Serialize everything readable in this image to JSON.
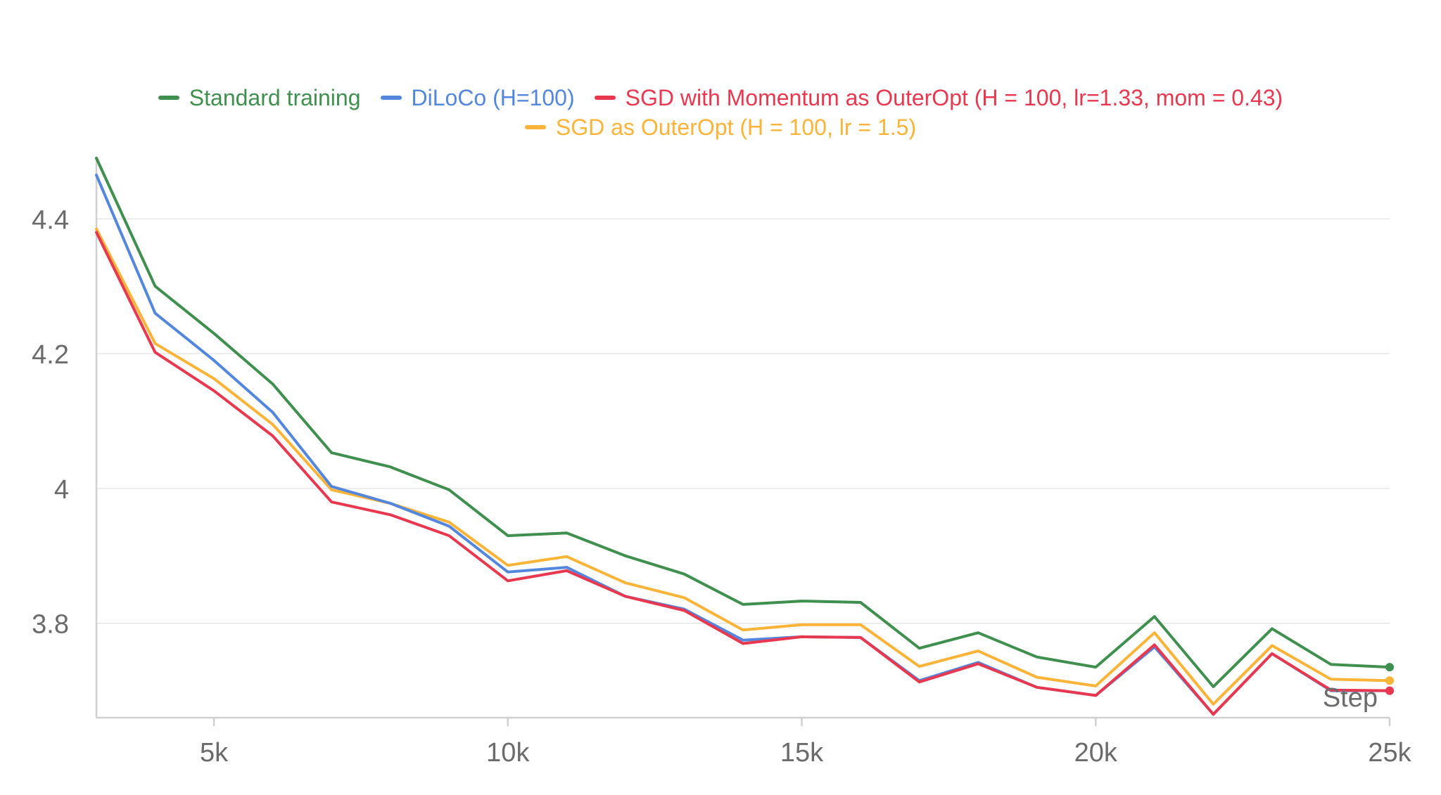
{
  "chart_data": {
    "type": "line",
    "title": "",
    "xlabel": "Step",
    "ylabel": "",
    "xlim": [
      3000,
      25000
    ],
    "ylim": [
      3.66,
      4.49
    ],
    "x_ticks": [
      5000,
      10000,
      15000,
      20000,
      25000
    ],
    "x_tick_labels": [
      "5k",
      "10k",
      "15k",
      "20k",
      "25k"
    ],
    "y_ticks": [
      3.8,
      4.0,
      4.2,
      4.4
    ],
    "y_tick_labels": [
      "3.8",
      "4",
      "4.2",
      "4.4"
    ],
    "grid": "horizontal",
    "legend_position": "top-center",
    "x": [
      3000,
      4000,
      5000,
      6000,
      7000,
      8000,
      9000,
      10000,
      11000,
      12000,
      13000,
      14000,
      15000,
      16000,
      17000,
      18000,
      19000,
      20000,
      21000,
      22000,
      23000,
      24000,
      25000
    ],
    "series": [
      {
        "name": "Standard training",
        "color": "#3f8f4f",
        "values": [
          4.49,
          4.3,
          4.23,
          4.155,
          4.053,
          4.032,
          3.998,
          3.93,
          3.934,
          3.9,
          3.873,
          3.828,
          3.833,
          3.831,
          3.763,
          3.786,
          3.75,
          3.735,
          3.81,
          3.706,
          3.792,
          3.739,
          3.735
        ]
      },
      {
        "name": "DiLoCo (H=100)",
        "color": "#5387dd",
        "values": [
          4.465,
          4.26,
          4.19,
          4.113,
          4.003,
          3.978,
          3.944,
          3.876,
          3.883,
          3.84,
          3.821,
          3.775,
          3.78,
          3.779,
          3.715,
          3.742,
          3.705,
          3.693,
          3.765,
          3.665,
          3.755,
          3.7,
          3.7
        ]
      },
      {
        "name": "SGD with Momentum as OuterOpt (H = 100, lr=1.33, mom = 0.43)",
        "color": "#e8384f",
        "values": [
          4.38,
          4.202,
          4.145,
          4.078,
          3.98,
          3.961,
          3.93,
          3.863,
          3.878,
          3.84,
          3.819,
          3.77,
          3.78,
          3.779,
          3.713,
          3.74,
          3.705,
          3.693,
          3.768,
          3.665,
          3.755,
          3.701,
          3.7
        ]
      },
      {
        "name": "SGD as OuterOpt (H = 100, lr = 1.5)",
        "color": "#fbb338",
        "values": [
          4.385,
          4.215,
          4.163,
          4.095,
          3.998,
          3.978,
          3.95,
          3.886,
          3.899,
          3.86,
          3.838,
          3.79,
          3.798,
          3.798,
          3.736,
          3.759,
          3.72,
          3.707,
          3.786,
          3.68,
          3.767,
          3.717,
          3.715
        ]
      }
    ]
  }
}
